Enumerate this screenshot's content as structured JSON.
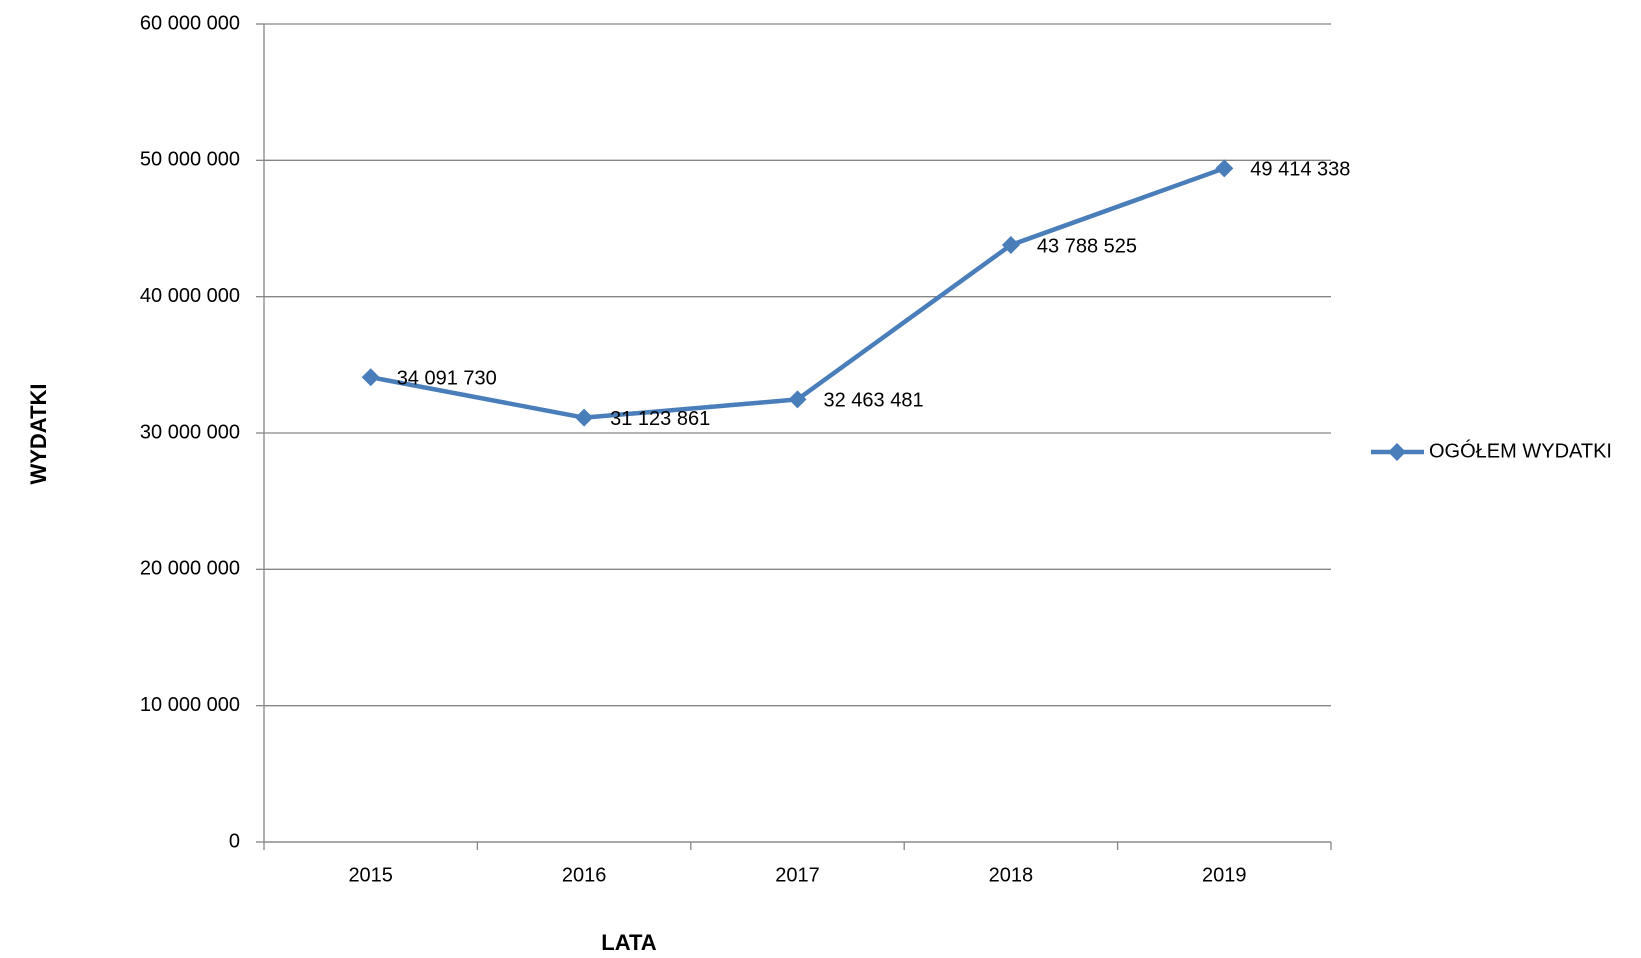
{
  "chart_data": {
    "type": "line",
    "categories": [
      "2015",
      "2016",
      "2017",
      "2018",
      "2019"
    ],
    "series": [
      {
        "name": "OGÓŁEM WYDATKI",
        "color": "#4a7ebb",
        "values": [
          34091730,
          31123861,
          32463481,
          43788525,
          49414338
        ],
        "value_labels": [
          "34 091 730",
          "31 123 861",
          "32 463 481",
          "43 788 525",
          "49 414 338"
        ]
      }
    ],
    "x_label": "LATA",
    "y_label": "WYDATKI",
    "ylim": [
      0,
      60000000
    ],
    "yticks": [
      0,
      {
        "value": 10000000,
        "label": "10 000 000"
      },
      {
        "value": 20000000,
        "label": "20 000 000"
      },
      {
        "value": 30000000,
        "label": "30 000 000"
      },
      {
        "value": 40000000,
        "label": "40 000 000"
      },
      {
        "value": 50000000,
        "label": "50 000 000"
      },
      {
        "value": 60000000,
        "label": "60 000 000"
      }
    ],
    "grid": true,
    "legend": "right"
  }
}
